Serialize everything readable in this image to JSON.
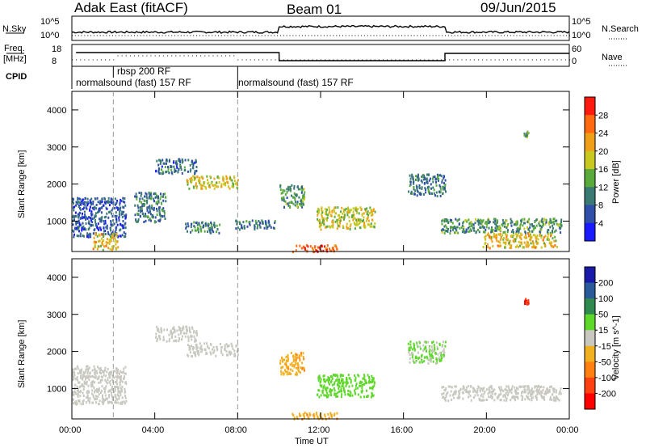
{
  "header": {
    "station": "Adak East (fitACF)",
    "beam": "Beam 01",
    "date": "09/Jun/2015"
  },
  "aux_panels": {
    "nsky_label": "N.Sky",
    "nsky_ticks": [
      "10^5",
      "10^0"
    ],
    "nsearch_label": "N.Search",
    "nsearch_ticks": [
      "10^5",
      "10^0"
    ],
    "freq_label_line1": "Freq.",
    "freq_label_line2": "[MHz]",
    "freq_ticks": [
      "18",
      "8"
    ],
    "nave_label": "Nave",
    "nave_ticks": [
      "60",
      "0"
    ],
    "cpid_label": "CPID",
    "cpid_entries": [
      {
        "text": "normalsound (fast) 157 RF",
        "start_hour": 0
      },
      {
        "text": "rbsp 200 RF",
        "start_hour": 2
      },
      {
        "text": "normalsound (fast) 157 RF",
        "start_hour": 8
      }
    ]
  },
  "colors": {
    "power_scale": [
      "#1a1aff",
      "#2f4fa8",
      "#3a7a72",
      "#5aaa3c",
      "#c8c81e",
      "#f0a018",
      "#ff6a10",
      "#ff1a10"
    ],
    "velocity_scale": [
      "#1a1aa8",
      "#2a5a9a",
      "#2f8a4f",
      "#5ed82a",
      "#c8c8c0",
      "#f0b020",
      "#ff8010",
      "#ff4010",
      "#ff0000"
    ]
  },
  "chart_data": [
    {
      "type": "heatmap",
      "title": "Power",
      "xlabel": "Time UT",
      "ylabel": "Slant Range [km]",
      "xlim": [
        0,
        24
      ],
      "ylim": [
        180,
        4500
      ],
      "x_tick_labels": [
        "00:00",
        "04:00",
        "08:00",
        "12:00",
        "16:00",
        "20:00",
        "00:00"
      ],
      "y_tick_labels": [
        "1000",
        "2000",
        "3000",
        "4000"
      ],
      "colorbar": {
        "label": "Power [dB]",
        "ticks": [
          "4",
          "8",
          "12",
          "16",
          "20",
          "24",
          "28"
        ],
        "range": [
          0,
          30
        ]
      },
      "regions": [
        {
          "t0": 0.0,
          "t1": 2.6,
          "r0": 600,
          "r1": 1650,
          "level": 7
        },
        {
          "t0": 1.0,
          "t1": 2.2,
          "r0": 250,
          "r1": 700,
          "level": 20
        },
        {
          "t0": 3.0,
          "t1": 4.5,
          "r0": 1000,
          "r1": 1800,
          "level": 9
        },
        {
          "t0": 4.0,
          "t1": 6.0,
          "r0": 2300,
          "r1": 2700,
          "level": 8
        },
        {
          "t0": 5.4,
          "t1": 7.2,
          "r0": 700,
          "r1": 1000,
          "level": 10
        },
        {
          "t0": 5.5,
          "t1": 8.0,
          "r0": 1900,
          "r1": 2250,
          "level": 18
        },
        {
          "t0": 7.8,
          "t1": 9.8,
          "r0": 800,
          "r1": 1050,
          "level": 9
        },
        {
          "t0": 10.0,
          "t1": 11.2,
          "r0": 1400,
          "r1": 2000,
          "level": 12
        },
        {
          "t0": 10.6,
          "t1": 12.8,
          "r0": 200,
          "r1": 380,
          "level": 28
        },
        {
          "t0": 11.8,
          "t1": 14.6,
          "r0": 800,
          "r1": 1400,
          "level": 18
        },
        {
          "t0": 16.2,
          "t1": 18.0,
          "r0": 1700,
          "r1": 2300,
          "level": 9
        },
        {
          "t0": 17.8,
          "t1": 23.6,
          "r0": 700,
          "r1": 1100,
          "level": 12
        },
        {
          "t0": 19.8,
          "t1": 23.4,
          "r0": 300,
          "r1": 700,
          "level": 20
        },
        {
          "t0": 21.8,
          "t1": 22.0,
          "r0": 3300,
          "r1": 3450,
          "level": 14
        }
      ]
    },
    {
      "type": "heatmap",
      "title": "Velocity",
      "xlabel": "Time UT",
      "ylabel": "Slant Range [km]",
      "xlim": [
        0,
        24
      ],
      "ylim": [
        180,
        4500
      ],
      "x_tick_labels": [
        "00:00",
        "04:00",
        "08:00",
        "12:00",
        "16:00",
        "20:00",
        "00:00"
      ],
      "y_tick_labels": [
        "1000",
        "2000",
        "3000",
        "4000"
      ],
      "colorbar": {
        "label": "Velocity [m s^-1]",
        "ticks": [
          "200",
          "100",
          "50",
          "15",
          "-15",
          "-50",
          "-100",
          "-200"
        ],
        "range": [
          -250,
          250
        ]
      },
      "regions": [
        {
          "t0": 0.0,
          "t1": 2.6,
          "r0": 600,
          "r1": 1650,
          "v": 0
        },
        {
          "t0": 4.0,
          "t1": 6.0,
          "r0": 2300,
          "r1": 2700,
          "v": 0
        },
        {
          "t0": 5.5,
          "t1": 8.0,
          "r0": 1900,
          "r1": 2250,
          "v": 0
        },
        {
          "t0": 10.0,
          "t1": 11.2,
          "r0": 1400,
          "r1": 2000,
          "v": -40
        },
        {
          "t0": 10.6,
          "t1": 12.8,
          "r0": 200,
          "r1": 380,
          "v": -40
        },
        {
          "t0": 11.8,
          "t1": 14.6,
          "r0": 800,
          "r1": 1400,
          "v": 30
        },
        {
          "t0": 16.2,
          "t1": 18.0,
          "r0": 1700,
          "r1": 2300,
          "v": 20
        },
        {
          "t0": 17.8,
          "t1": 23.6,
          "r0": 700,
          "r1": 1100,
          "v": 0
        },
        {
          "t0": 21.8,
          "t1": 22.0,
          "r0": 3300,
          "r1": 3450,
          "v": -200
        }
      ]
    }
  ]
}
